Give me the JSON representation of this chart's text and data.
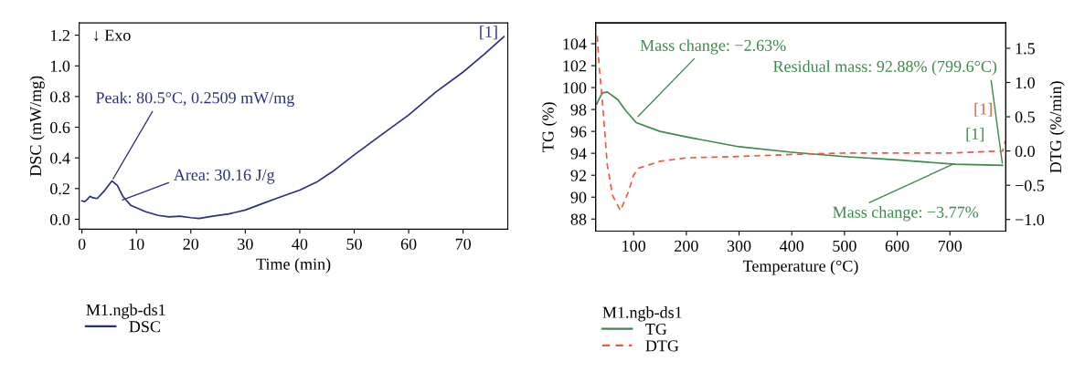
{
  "chart_data": [
    {
      "type": "line",
      "xlabel": "Time (min)",
      "ylabel": "DSC (mW/mg)",
      "legend_title": "M1.ngb-ds1",
      "legend": "bottom",
      "xlim": [
        -0.5,
        78.2
      ],
      "xticks": [
        0,
        10,
        20,
        30,
        40,
        50,
        60,
        70
      ],
      "ylim": [
        -0.065,
        1.28
      ],
      "yticks": [
        {
          "value": 0.0,
          "label": "0.0"
        },
        0.2,
        0.4,
        0.6,
        0.8,
        {
          "value": 1.0,
          "label": "1.0"
        },
        1.2
      ],
      "series": [
        {
          "name": "DSC",
          "color": "#2b2f80",
          "x": [
            0,
            0.5,
            1,
            1.5,
            2,
            2.8,
            4,
            5.5,
            6.5,
            7.5,
            9,
            11.6,
            14,
            16,
            18,
            20,
            21.5,
            24,
            27,
            30,
            33,
            36,
            40,
            43,
            46,
            50,
            55,
            60,
            65,
            70,
            74,
            77.5
          ],
          "values": [
            0.12,
            0.115,
            0.13,
            0.15,
            0.14,
            0.135,
            0.18,
            0.25,
            0.22,
            0.15,
            0.09,
            0.05,
            0.025,
            0.015,
            0.02,
            0.01,
            0.005,
            0.02,
            0.035,
            0.06,
            0.1,
            0.14,
            0.19,
            0.24,
            0.31,
            0.42,
            0.55,
            0.68,
            0.83,
            0.96,
            1.08,
            1.19
          ]
        }
      ],
      "annotations": [
        "↓ Exo",
        {
          "text": "Peak: 80.5°C, 0.2509 mW/mg",
          "x": 5.5,
          "y": 0.25
        },
        {
          "text": "Area: 30.16 J/g",
          "x": 7,
          "y": 0.12
        },
        {
          "text": "[1]",
          "x": 77.5,
          "y": 1.19
        }
      ]
    },
    {
      "type": "line",
      "xlabel": "Temperature (°C)",
      "ylabel": "TG (%)",
      "y2label": "DTG (%/min)",
      "legend_title": "M1.ngb-ds1",
      "legend": "bottom",
      "xlim": [
        28,
        806
      ],
      "xticks": [
        100,
        200,
        300,
        400,
        500,
        600,
        700
      ],
      "ylim": [
        86.9,
        105.9
      ],
      "yticks": [
        88,
        90,
        92,
        94,
        96,
        98,
        100,
        102,
        104
      ],
      "y2lim": [
        -1.17,
        1.87
      ],
      "y2ticks": [
        {
          "value": -1.0,
          "label": "−1.0"
        },
        {
          "value": -0.5,
          "label": "−0.5"
        },
        {
          "value": 0.0,
          "label": "0.0"
        },
        {
          "value": 0.5,
          "label": "0.5"
        },
        {
          "value": 1.0,
          "label": "1.0"
        },
        {
          "value": 1.5,
          "label": "1.5"
        }
      ],
      "series": [
        {
          "name": "TG",
          "color": "#3d8a4c",
          "x": [
            30,
            40,
            50,
            70,
            85,
            105,
            150,
            200,
            300,
            400,
            500,
            600,
            710,
            800
          ],
          "values": [
            98.5,
            99.5,
            99.6,
            98.9,
            97.9,
            96.8,
            96.0,
            95.5,
            94.6,
            94.1,
            93.7,
            93.4,
            93.0,
            92.9
          ]
        },
        {
          "name": "DTG",
          "color": "#f0583c",
          "axis": "y2",
          "line_style": "dashed",
          "x": [
            31,
            35,
            40,
            45,
            50,
            60,
            75,
            90,
            100,
            110,
            130,
            150,
            200,
            300,
            400,
            500,
            600,
            700,
            800,
            805
          ],
          "values": [
            1.68,
            1.2,
            0.8,
            0.3,
            -0.2,
            -0.65,
            -0.87,
            -0.6,
            -0.35,
            -0.25,
            -0.2,
            -0.15,
            -0.1,
            -0.08,
            -0.05,
            -0.03,
            -0.03,
            -0.03,
            0.0,
            0.15
          ]
        }
      ],
      "annotations": [
        {
          "text": "Mass change: −2.63%",
          "x": 105,
          "y": 97.2
        },
        {
          "text": "Residual mass: 92.88% (799.6°C)",
          "x": 800,
          "y": 92.88
        },
        {
          "text": "Mass change: −3.77%",
          "x": 710,
          "y": 93.1
        },
        {
          "text": "[1]",
          "x": 800,
          "y": 95.15
        },
        {
          "text": "[1]",
          "x": 800,
          "y": 92.88
        }
      ]
    }
  ]
}
